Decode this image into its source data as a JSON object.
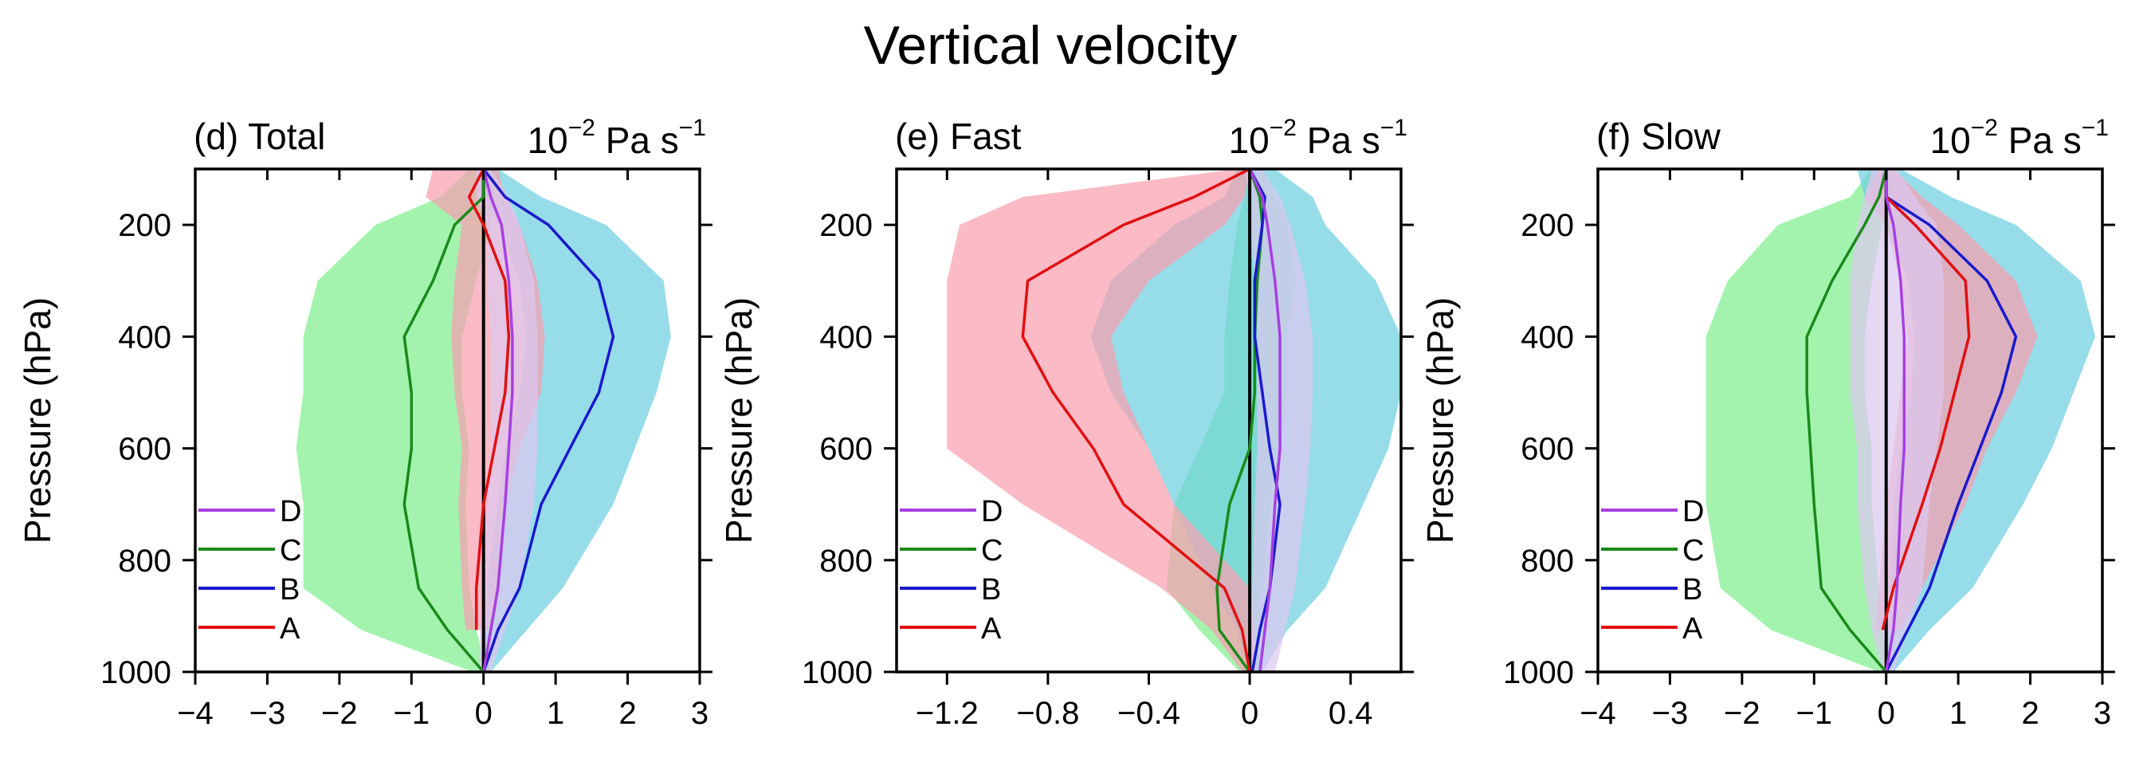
{
  "figure_title": "Vertical velocity",
  "chart_data": [
    {
      "type": "line",
      "panel_label": "(d) Total",
      "units": "10^-2 Pa s^-1",
      "units_base": "10",
      "units_exp": "−2",
      "units_rest": "Pa s",
      "units_rest_exp": "−1",
      "ylabel": "Pressure (hPa)",
      "xlim": [
        -4,
        3
      ],
      "ylim": [
        100,
        1000
      ],
      "xticks": [
        -4,
        -3,
        -2,
        -1,
        0,
        1,
        2,
        3
      ],
      "xtick_labels": [
        "−4",
        "−3",
        "−2",
        "−1",
        "0",
        "1",
        "2",
        "3"
      ],
      "yticks": [
        200,
        400,
        600,
        800,
        1000
      ],
      "ytick_labels": [
        "200",
        "400",
        "600",
        "800",
        "1000"
      ],
      "legend": {
        "placement": "bottom-left",
        "entries": [
          "D",
          "C",
          "B",
          "A"
        ]
      },
      "series": [
        {
          "name": "D",
          "color": "#a640e0",
          "fill": "#dcc8f0",
          "p": [
            100,
            150,
            200,
            300,
            400,
            500,
            600,
            700,
            850,
            925,
            1000
          ],
          "mean": [
            0,
            0.1,
            0.25,
            0.35,
            0.4,
            0.4,
            0.35,
            0.3,
            0.2,
            0.1,
            0
          ],
          "lo": [
            -0.1,
            -0.1,
            0.05,
            0.05,
            0.1,
            0.1,
            0.1,
            0.05,
            0,
            -0.05,
            -0.05
          ],
          "hi": [
            0.1,
            0.35,
            0.5,
            0.7,
            0.75,
            0.75,
            0.75,
            0.7,
            0.5,
            0.3,
            0.1
          ]
        },
        {
          "name": "C",
          "color": "#1a8a1a",
          "fill": "#80ee90",
          "p": [
            100,
            150,
            200,
            300,
            400,
            500,
            600,
            700,
            850,
            925,
            1000
          ],
          "mean": [
            0,
            0,
            -0.4,
            -0.7,
            -1.1,
            -1.0,
            -1.0,
            -1.1,
            -0.9,
            -0.5,
            0
          ],
          "lo": [
            -0.2,
            -0.6,
            -1.5,
            -2.3,
            -2.5,
            -2.5,
            -2.6,
            -2.5,
            -2.5,
            -1.7,
            -0.15
          ],
          "hi": [
            0.15,
            0.15,
            0.1,
            -0.1,
            -0.3,
            -0.3,
            -0.2,
            -0.25,
            -0.2,
            -0.1,
            0.05
          ]
        },
        {
          "name": "B",
          "color": "#1a1acc",
          "fill": "#6fcfe0",
          "p": [
            100,
            150,
            200,
            300,
            400,
            500,
            600,
            700,
            850,
            925,
            1000
          ],
          "mean": [
            0,
            0.3,
            0.9,
            1.6,
            1.8,
            1.6,
            1.2,
            0.8,
            0.5,
            0.2,
            0
          ],
          "lo": [
            -0.1,
            0,
            0.2,
            0.5,
            0.6,
            0.5,
            0.3,
            0.2,
            0.05,
            0,
            0
          ],
          "hi": [
            0.2,
            0.8,
            1.7,
            2.5,
            2.6,
            2.4,
            2.1,
            1.8,
            1.1,
            0.6,
            0.1
          ]
        },
        {
          "name": "A",
          "color": "#e01010",
          "fill": "#f8a0b0",
          "p": [
            100,
            150,
            200,
            300,
            400,
            500,
            600,
            700,
            850,
            925,
            1000
          ],
          "mean": [
            0,
            -0.2,
            0,
            0.3,
            0.35,
            0.3,
            0.15,
            0,
            -0.1,
            -0.1,
            null
          ],
          "lo": [
            -0.7,
            -0.8,
            -0.3,
            -0.4,
            -0.45,
            -0.4,
            -0.3,
            -0.35,
            -0.3,
            -0.25,
            null
          ],
          "hi": [
            0.2,
            0.3,
            0.5,
            0.75,
            0.85,
            0.8,
            0.5,
            0.3,
            0.2,
            0.1,
            null
          ]
        }
      ]
    },
    {
      "type": "line",
      "panel_label": "(e) Fast",
      "units": "10^-2 Pa s^-1",
      "units_base": "10",
      "units_exp": "−2",
      "units_rest": "Pa s",
      "units_rest_exp": "−1",
      "ylabel": "Pressure (hPa)",
      "xlim": [
        -1.4,
        0.6
      ],
      "ylim": [
        100,
        1000
      ],
      "xticks": [
        -1.2,
        -0.8,
        -0.4,
        0,
        0.4
      ],
      "xtick_labels": [
        "−1.2",
        "−0.8",
        "−0.4",
        "0",
        "0.4"
      ],
      "yticks": [
        200,
        400,
        600,
        800,
        1000
      ],
      "ytick_labels": [
        "200",
        "400",
        "600",
        "800",
        "1000"
      ],
      "legend": {
        "placement": "bottom-left",
        "entries": [
          "D",
          "C",
          "B",
          "A"
        ]
      },
      "series": [
        {
          "name": "D",
          "color": "#a640e0",
          "fill": "#dcc8f0",
          "p": [
            100,
            150,
            200,
            300,
            400,
            500,
            600,
            700,
            850,
            925,
            1000
          ],
          "mean": [
            0,
            0.05,
            0.07,
            0.1,
            0.12,
            0.12,
            0.12,
            0.1,
            0.08,
            0.06,
            0.04
          ],
          "lo": [
            -0.02,
            0,
            0,
            0.02,
            0.03,
            0.03,
            0.03,
            0.02,
            0.01,
            0,
            -0.01
          ],
          "hi": [
            0.05,
            0.12,
            0.16,
            0.22,
            0.25,
            0.25,
            0.24,
            0.22,
            0.18,
            0.14,
            0.1
          ]
        },
        {
          "name": "C",
          "color": "#1a8a1a",
          "fill": "#80ee90",
          "p": [
            100,
            150,
            200,
            300,
            400,
            500,
            600,
            700,
            850,
            925,
            1000
          ],
          "mean": [
            0,
            0.04,
            0.05,
            0.03,
            0.02,
            0.02,
            0,
            -0.08,
            -0.13,
            -0.12,
            0
          ],
          "lo": [
            -0.04,
            -0.02,
            -0.05,
            -0.08,
            -0.1,
            -0.1,
            -0.2,
            -0.3,
            -0.33,
            -0.2,
            -0.04
          ],
          "hi": [
            0.05,
            0.1,
            0.15,
            0.18,
            0.15,
            0.15,
            0.12,
            0.08,
            0.05,
            0.03,
            0.04
          ]
        },
        {
          "name": "B",
          "color": "#1a1acc",
          "fill": "#6fcfe0",
          "p": [
            100,
            150,
            200,
            300,
            400,
            500,
            600,
            700,
            850,
            925,
            1000
          ],
          "mean": [
            0,
            0.06,
            0.05,
            0.02,
            0.02,
            0.05,
            0.08,
            0.12,
            0.08,
            0.04,
            0.01
          ],
          "lo": [
            -0.05,
            -0.1,
            -0.3,
            -0.55,
            -0.63,
            -0.55,
            -0.4,
            -0.3,
            -0.15,
            -0.05,
            0
          ],
          "hi": [
            0.1,
            0.25,
            0.3,
            0.5,
            0.6,
            0.6,
            0.55,
            0.45,
            0.3,
            0.15,
            0.05
          ]
        },
        {
          "name": "A",
          "color": "#e01010",
          "fill": "#f8a0b0",
          "p": [
            100,
            150,
            200,
            300,
            400,
            500,
            600,
            700,
            850,
            925,
            1000
          ],
          "mean": [
            0,
            -0.22,
            -0.5,
            -0.88,
            -0.9,
            -0.78,
            -0.62,
            -0.5,
            -0.1,
            -0.03,
            0
          ],
          "lo": [
            -0.05,
            -0.9,
            -1.15,
            -1.2,
            -1.2,
            -1.2,
            -1.2,
            -0.9,
            -0.35,
            -0.15,
            -0.03
          ],
          "hi": [
            0,
            -0.02,
            -0.1,
            -0.4,
            -0.55,
            -0.5,
            -0.4,
            -0.3,
            0,
            0.02,
            0.02
          ]
        }
      ]
    },
    {
      "type": "line",
      "panel_label": "(f) Slow",
      "units": "10^-2 Pa s^-1",
      "units_base": "10",
      "units_exp": "−2",
      "units_rest": "Pa s",
      "units_rest_exp": "−1",
      "ylabel": "Pressure (hPa)",
      "xlim": [
        -4,
        3
      ],
      "ylim": [
        100,
        1000
      ],
      "xticks": [
        -4,
        -3,
        -2,
        -1,
        0,
        1,
        2,
        3
      ],
      "xtick_labels": [
        "−4",
        "−3",
        "−2",
        "−1",
        "0",
        "1",
        "2",
        "3"
      ],
      "yticks": [
        200,
        400,
        600,
        800,
        1000
      ],
      "ytick_labels": [
        "200",
        "400",
        "600",
        "800",
        "1000"
      ],
      "legend": {
        "placement": "bottom-left",
        "entries": [
          "D",
          "C",
          "B",
          "A"
        ]
      },
      "series": [
        {
          "name": "D",
          "color": "#a640e0",
          "fill": "#dcc8f0",
          "p": [
            100,
            150,
            200,
            300,
            400,
            500,
            600,
            700,
            850,
            925,
            1000
          ],
          "mean": [
            0,
            0,
            0.1,
            0.2,
            0.25,
            0.25,
            0.25,
            0.2,
            0.15,
            0.1,
            0
          ],
          "lo": [
            -0.2,
            -0.3,
            -0.4,
            -0.5,
            -0.5,
            -0.5,
            -0.4,
            -0.4,
            -0.3,
            -0.2,
            -0.05
          ],
          "hi": [
            0.15,
            0.4,
            0.7,
            0.8,
            0.8,
            0.8,
            0.7,
            0.6,
            0.5,
            0.3,
            0.1
          ]
        },
        {
          "name": "C",
          "color": "#1a8a1a",
          "fill": "#80ee90",
          "p": [
            100,
            150,
            200,
            300,
            400,
            500,
            600,
            700,
            850,
            925,
            1000
          ],
          "mean": [
            0,
            -0.1,
            -0.3,
            -0.75,
            -1.1,
            -1.1,
            -1.05,
            -1.0,
            -0.9,
            -0.5,
            0
          ],
          "lo": [
            -0.2,
            -0.5,
            -1.5,
            -2.2,
            -2.5,
            -2.5,
            -2.5,
            -2.5,
            -2.3,
            -1.6,
            -0.1
          ],
          "hi": [
            0.15,
            0.1,
            -0.05,
            -0.2,
            -0.3,
            -0.3,
            -0.2,
            -0.2,
            -0.1,
            -0.05,
            0.05
          ]
        },
        {
          "name": "B",
          "color": "#1a1acc",
          "fill": "#6fcfe0",
          "p": [
            100,
            150,
            200,
            300,
            400,
            500,
            600,
            700,
            850,
            925,
            1000
          ],
          "mean": [
            0,
            0,
            0.6,
            1.4,
            1.8,
            1.6,
            1.3,
            1.0,
            0.6,
            0.3,
            0
          ],
          "lo": [
            -0.4,
            -0.3,
            0,
            0.3,
            0.4,
            0.35,
            0.2,
            0.1,
            0.05,
            0,
            0
          ],
          "hi": [
            0.2,
            0.9,
            1.8,
            2.7,
            2.9,
            2.6,
            2.3,
            1.9,
            1.2,
            0.6,
            0.1
          ]
        },
        {
          "name": "A",
          "color": "#e01010",
          "fill": "#f8a0b0",
          "p": [
            100,
            150,
            200,
            300,
            400,
            500,
            600,
            700,
            850,
            925
          ],
          "mean": [
            0,
            0,
            0.4,
            1.1,
            1.15,
            0.95,
            0.75,
            0.5,
            0.1,
            -0.05
          ],
          "lo": [
            -0.1,
            -0.3,
            0,
            0.2,
            0.3,
            0.2,
            0.1,
            0,
            -0.1,
            -0.15
          ],
          "hi": [
            0.1,
            0.5,
            1.0,
            1.8,
            2.1,
            1.8,
            1.4,
            1.1,
            0.5,
            0.2
          ]
        }
      ]
    }
  ]
}
